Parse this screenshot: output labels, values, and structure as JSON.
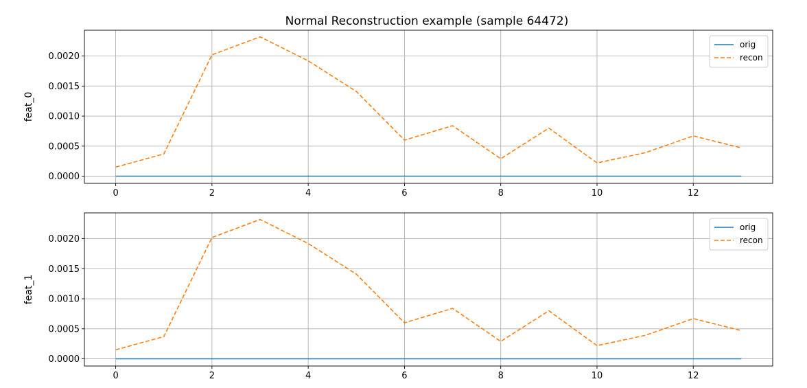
{
  "figure": {
    "title": "Normal Reconstruction example (sample 64472)"
  },
  "chart_data": [
    {
      "type": "line",
      "ylabel": "feat_0",
      "xlim": [
        -0.65,
        13.65
      ],
      "ylim": [
        -0.00012,
        0.00243
      ],
      "xticks": [
        0,
        2,
        4,
        6,
        8,
        10,
        12
      ],
      "yticks": [
        0.0,
        0.0005,
        0.001,
        0.0015,
        0.002
      ],
      "ytick_labels": [
        "0.0000",
        "0.0005",
        "0.0010",
        "0.0015",
        "0.0020"
      ],
      "grid": true,
      "legend": "top-right",
      "x": [
        0,
        1,
        2,
        3,
        4,
        5,
        6,
        7,
        8,
        9,
        10,
        11,
        12,
        13
      ],
      "series": [
        {
          "name": "orig",
          "color": "#1f77b4",
          "dash": "solid",
          "values": [
            0,
            0,
            0,
            0,
            0,
            0,
            0,
            0,
            0,
            0,
            0,
            0,
            0,
            0
          ]
        },
        {
          "name": "recon",
          "color": "#ff7f0e",
          "dash": "dashed",
          "values": [
            0.00015,
            0.00037,
            0.00202,
            0.00232,
            0.00192,
            0.00141,
            0.0006,
            0.00084,
            0.00029,
            0.0008,
            0.00022,
            0.00039,
            0.00067,
            0.00047
          ]
        }
      ]
    },
    {
      "type": "line",
      "ylabel": "feat_1",
      "xlim": [
        -0.65,
        13.65
      ],
      "ylim": [
        -0.00012,
        0.00243
      ],
      "xticks": [
        0,
        2,
        4,
        6,
        8,
        10,
        12
      ],
      "yticks": [
        0.0,
        0.0005,
        0.001,
        0.0015,
        0.002
      ],
      "ytick_labels": [
        "0.0000",
        "0.0005",
        "0.0010",
        "0.0015",
        "0.0020"
      ],
      "grid": true,
      "legend": "top-right",
      "x": [
        0,
        1,
        2,
        3,
        4,
        5,
        6,
        7,
        8,
        9,
        10,
        11,
        12,
        13
      ],
      "series": [
        {
          "name": "orig",
          "color": "#1f77b4",
          "dash": "solid",
          "values": [
            0,
            0,
            0,
            0,
            0,
            0,
            0,
            0,
            0,
            0,
            0,
            0,
            0,
            0
          ]
        },
        {
          "name": "recon",
          "color": "#ff7f0e",
          "dash": "dashed",
          "values": [
            0.00015,
            0.00037,
            0.00202,
            0.00232,
            0.00192,
            0.00141,
            0.0006,
            0.00084,
            0.00029,
            0.0008,
            0.00022,
            0.00039,
            0.00067,
            0.00047
          ]
        }
      ]
    }
  ]
}
